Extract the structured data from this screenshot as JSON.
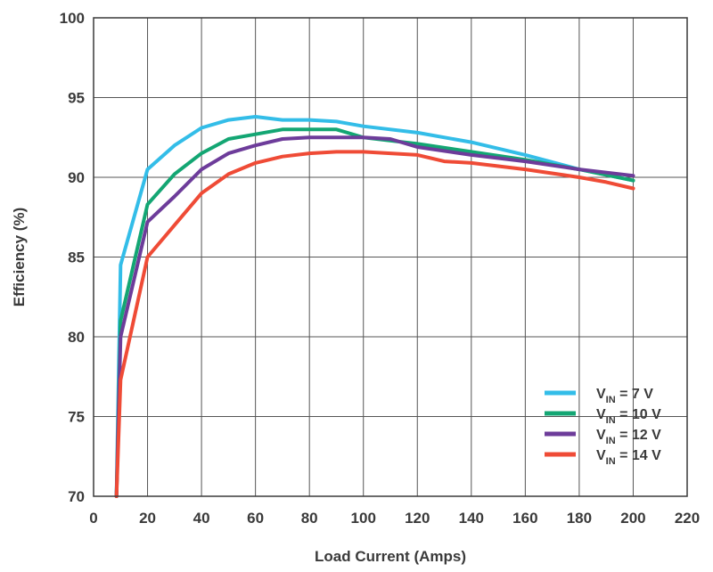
{
  "chart_data": {
    "type": "line",
    "title": "",
    "xlabel": "Load Current (Amps)",
    "ylabel": "Efficiency (%)",
    "xlim": [
      0,
      220
    ],
    "ylim": [
      70,
      100
    ],
    "xticks": [
      0,
      20,
      40,
      60,
      80,
      100,
      120,
      140,
      160,
      180,
      200,
      220
    ],
    "yticks": [
      70,
      75,
      80,
      85,
      90,
      95,
      100
    ],
    "grid": true,
    "legend_position": "bottom-right",
    "series": [
      {
        "label_main": "V",
        "label_sub": "IN",
        "label_rest": " = 7 V",
        "color": "#33bde8",
        "points": [
          [
            8.5,
            70
          ],
          [
            10,
            84.5
          ],
          [
            20,
            90.5
          ],
          [
            30,
            92.0
          ],
          [
            40,
            93.1
          ],
          [
            50,
            93.6
          ],
          [
            60,
            93.8
          ],
          [
            70,
            93.6
          ],
          [
            80,
            93.6
          ],
          [
            90,
            93.5
          ],
          [
            100,
            93.2
          ],
          [
            120,
            92.8
          ],
          [
            140,
            92.2
          ],
          [
            160,
            91.4
          ],
          [
            180,
            90.5
          ],
          [
            200,
            89.8
          ]
        ]
      },
      {
        "label_main": "V",
        "label_sub": "IN",
        "label_rest": " = 10 V",
        "color": "#13a673",
        "points": [
          [
            8.5,
            70
          ],
          [
            10,
            81.0
          ],
          [
            20,
            88.3
          ],
          [
            30,
            90.2
          ],
          [
            40,
            91.5
          ],
          [
            50,
            92.4
          ],
          [
            60,
            92.7
          ],
          [
            70,
            93.0
          ],
          [
            80,
            93.0
          ],
          [
            90,
            93.0
          ],
          [
            100,
            92.5
          ],
          [
            120,
            92.1
          ],
          [
            140,
            91.6
          ],
          [
            160,
            91.1
          ],
          [
            180,
            90.5
          ],
          [
            200,
            89.8
          ]
        ]
      },
      {
        "label_main": "V",
        "label_sub": "IN",
        "label_rest": " = 12 V",
        "color": "#6d3c9a",
        "points": [
          [
            8.5,
            70
          ],
          [
            10,
            80.0
          ],
          [
            20,
            87.2
          ],
          [
            30,
            88.8
          ],
          [
            40,
            90.5
          ],
          [
            50,
            91.5
          ],
          [
            60,
            92.0
          ],
          [
            70,
            92.4
          ],
          [
            80,
            92.5
          ],
          [
            90,
            92.5
          ],
          [
            100,
            92.5
          ],
          [
            110,
            92.4
          ],
          [
            120,
            91.9
          ],
          [
            140,
            91.4
          ],
          [
            160,
            91.0
          ],
          [
            180,
            90.5
          ],
          [
            200,
            90.1
          ]
        ]
      },
      {
        "label_main": "V",
        "label_sub": "IN",
        "label_rest": " = 14 V",
        "color": "#ef4b36",
        "points": [
          [
            8.5,
            70
          ],
          [
            10,
            77.3
          ],
          [
            20,
            85.0
          ],
          [
            30,
            87.0
          ],
          [
            40,
            89.0
          ],
          [
            50,
            90.2
          ],
          [
            60,
            90.9
          ],
          [
            70,
            91.3
          ],
          [
            80,
            91.5
          ],
          [
            90,
            91.6
          ],
          [
            100,
            91.6
          ],
          [
            120,
            91.4
          ],
          [
            130,
            91.0
          ],
          [
            140,
            90.9
          ],
          [
            160,
            90.5
          ],
          [
            180,
            90.0
          ],
          [
            190,
            89.7
          ],
          [
            200,
            89.3
          ]
        ]
      }
    ]
  }
}
